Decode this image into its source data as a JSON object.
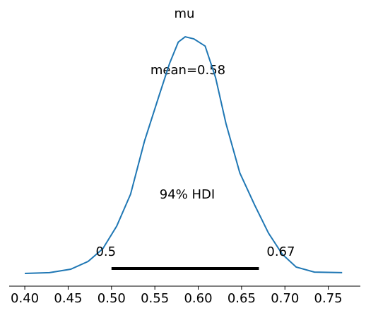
{
  "chart_data": {
    "type": "density",
    "title": "mu",
    "x": [
      0.4,
      0.4285,
      0.453,
      0.473,
      0.49,
      0.506,
      0.522,
      0.538,
      0.555,
      0.567,
      0.577,
      0.585,
      0.595,
      0.608,
      0.62,
      0.632,
      0.648,
      0.665,
      0.681,
      0.697,
      0.713,
      0.734,
      0.766
    ],
    "series": [
      {
        "name": "mu",
        "color": "#1f77b4",
        "values": [
          0,
          0.03,
          0.16,
          0.45,
          0.93,
          1.78,
          2.98,
          4.97,
          6.7,
          7.9,
          8.7,
          8.9,
          8.82,
          8.55,
          7.37,
          5.64,
          3.78,
          2.58,
          1.52,
          0.72,
          0.24,
          0.05,
          0.03
        ]
      }
    ],
    "mean_annotation": "mean=0.58",
    "hdi_annotation": "94% HDI",
    "hdi": [
      0.5,
      0.67
    ],
    "xlim": [
      0.382,
      0.787
    ],
    "ylim": [
      0,
      9.22
    ],
    "xticks": [
      {
        "value": 0.4,
        "label": "0.40"
      },
      {
        "value": 0.45,
        "label": "0.45"
      },
      {
        "value": 0.5,
        "label": "0.50"
      },
      {
        "value": 0.55,
        "label": "0.55"
      },
      {
        "value": 0.6,
        "label": "0.60"
      },
      {
        "value": 0.65,
        "label": "0.65"
      },
      {
        "value": 0.7,
        "label": "0.70"
      },
      {
        "value": 0.75,
        "label": "0.75"
      }
    ]
  }
}
